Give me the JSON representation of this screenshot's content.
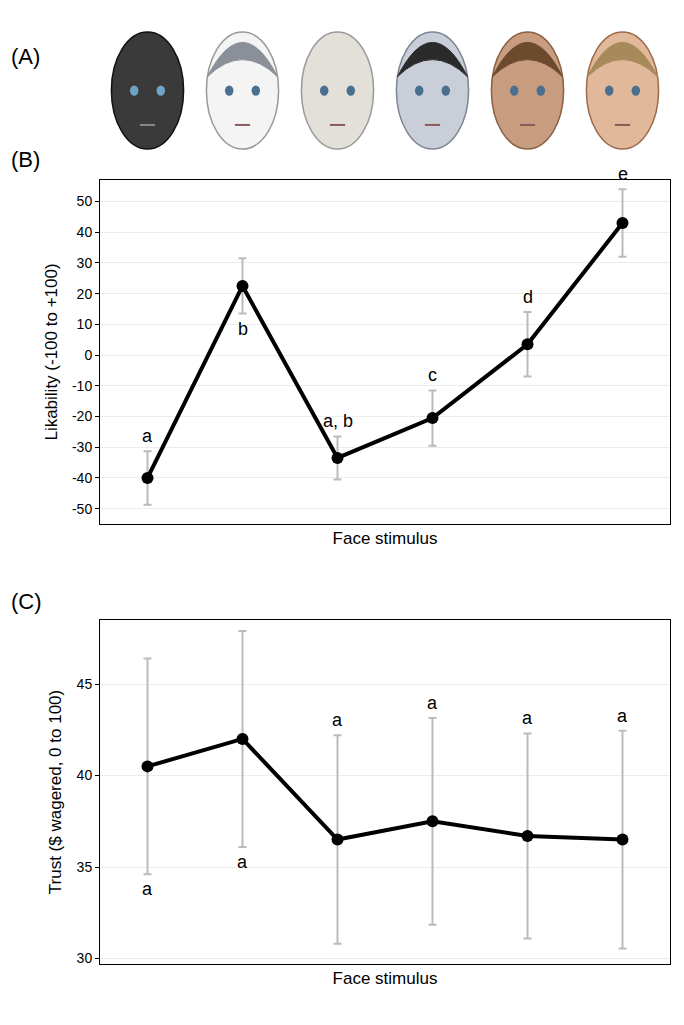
{
  "image_panel": {
    "label": "(A)"
  },
  "chart_data": [
    {
      "type": "line",
      "panel": "(B)",
      "xlabel": "Face stimulus",
      "ylabel": "Likability (-100 to +100)",
      "categories": [
        null,
        null,
        null,
        null,
        null,
        null
      ],
      "values": [
        -40,
        22.5,
        -33.5,
        -20.5,
        3.5,
        43
      ],
      "errors": [
        8.7,
        9,
        7,
        9,
        10.5,
        11
      ],
      "letters": [
        {
          "text": "a",
          "side": "above"
        },
        {
          "text": "b",
          "side": "below"
        },
        {
          "text": "a, b",
          "side": "above"
        },
        {
          "text": "c",
          "side": "above"
        },
        {
          "text": "d",
          "side": "above"
        },
        {
          "text": "e",
          "side": "above"
        }
      ],
      "color": "#000000",
      "marker": "circle",
      "ylim": [
        -55,
        57
      ],
      "yticks": [
        -50,
        -40,
        -30,
        -20,
        -10,
        0,
        10,
        20,
        30,
        40,
        50
      ],
      "grid": true,
      "tick_labels": "y"
    },
    {
      "type": "line",
      "panel": "(C)",
      "xlabel": "Face stimulus",
      "ylabel": "Trust ($ wagered, 0 to 100)",
      "categories": [
        null,
        null,
        null,
        null,
        null,
        null
      ],
      "values": [
        40.5,
        42,
        36.5,
        37.5,
        36.7,
        36.5
      ],
      "errors": [
        5.9,
        5.9,
        5.7,
        5.65,
        5.6,
        5.95
      ],
      "letters": [
        {
          "text": "a",
          "side": "below"
        },
        {
          "text": "a",
          "side": "below"
        },
        {
          "text": "a",
          "side": "above"
        },
        {
          "text": "a",
          "side": "above"
        },
        {
          "text": "a",
          "side": "above"
        },
        {
          "text": "a",
          "side": "above"
        }
      ],
      "color": "#000000",
      "marker": "circle",
      "ylim": [
        29.7,
        48.5
      ],
      "yticks": [
        30,
        35,
        40,
        45
      ],
      "grid": true,
      "tick_labels": "y"
    }
  ]
}
